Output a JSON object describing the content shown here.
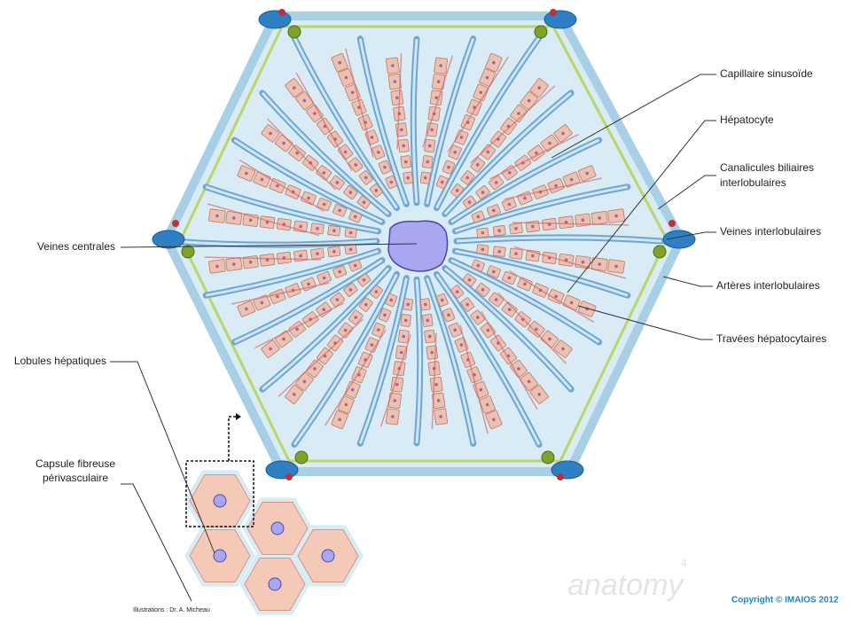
{
  "labels": {
    "capillaire_sinusoide": "Capillaire sinusoïde",
    "hepatocyte": "Hépatocyte",
    "canalicules_biliaires": [
      "Canalicules biliaires",
      "interlobulaires"
    ],
    "veines_interlobulaires": "Veines interlobulaires",
    "arteres_interlobulaires": "Artères interlobulaires",
    "travees_hepatocytaires": "Travées hépatocytaires",
    "veines_centrales": "Veines centrales",
    "lobules_hepatiques": "Lobules hépatiques",
    "capsule_fibreuse": [
      "Capsule fibreuse",
      "périvasculaire"
    ]
  },
  "footer": {
    "illustrations": "Illustrations : Dr. A. Micheau",
    "brand": "anatomy",
    "brand_version": "4",
    "copyright": "Copyright © IMAIOS 2012"
  }
}
